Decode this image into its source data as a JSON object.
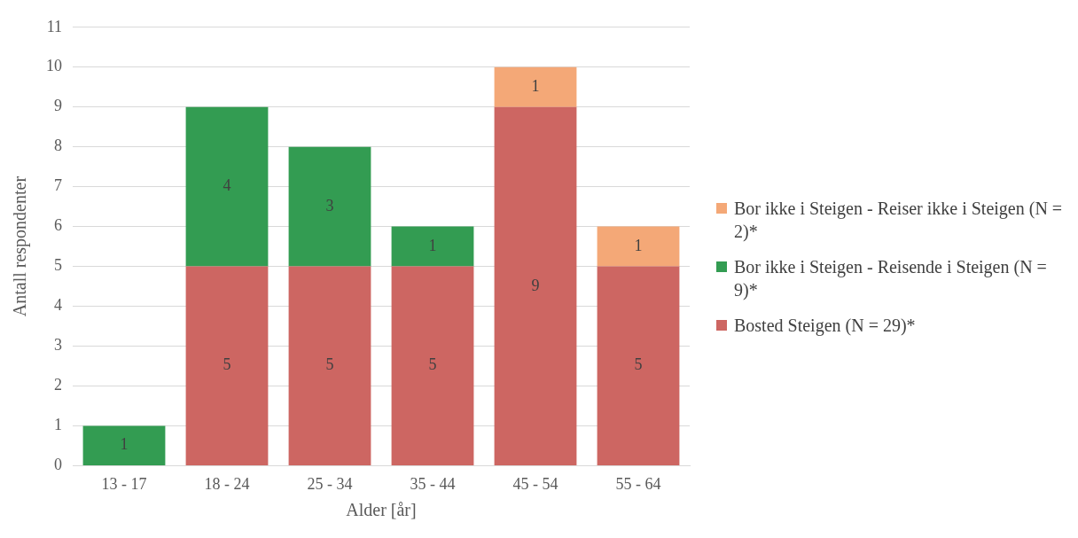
{
  "chart_data": {
    "type": "bar",
    "stacked": true,
    "xlabel": "Alder [år]",
    "ylabel": "Antall respondenter",
    "categories": [
      "13 - 17",
      "18 - 24",
      "25 - 34",
      "35 - 44",
      "45 - 54",
      "55 - 64"
    ],
    "series": [
      {
        "name": "Bosted Steigen (N = 29)*",
        "color": "#cd6662",
        "values": [
          null,
          5,
          5,
          5,
          9,
          5
        ]
      },
      {
        "name": "Bor ikke i Steigen - Reisende i Steigen (N = 9)*",
        "color": "#339c52",
        "values": [
          1,
          4,
          3,
          1,
          null,
          null
        ]
      },
      {
        "name": "Bor ikke i Steigen - Reiser ikke i Steigen (N = 2)*",
        "color": "#f4a877",
        "values": [
          null,
          null,
          null,
          null,
          1,
          1
        ]
      }
    ],
    "ylim": [
      0,
      11
    ],
    "yticks": [
      0,
      1,
      2,
      3,
      4,
      5,
      6,
      7,
      8,
      9,
      10,
      11
    ],
    "grid": "y",
    "legend": "right",
    "data_labels": true
  }
}
